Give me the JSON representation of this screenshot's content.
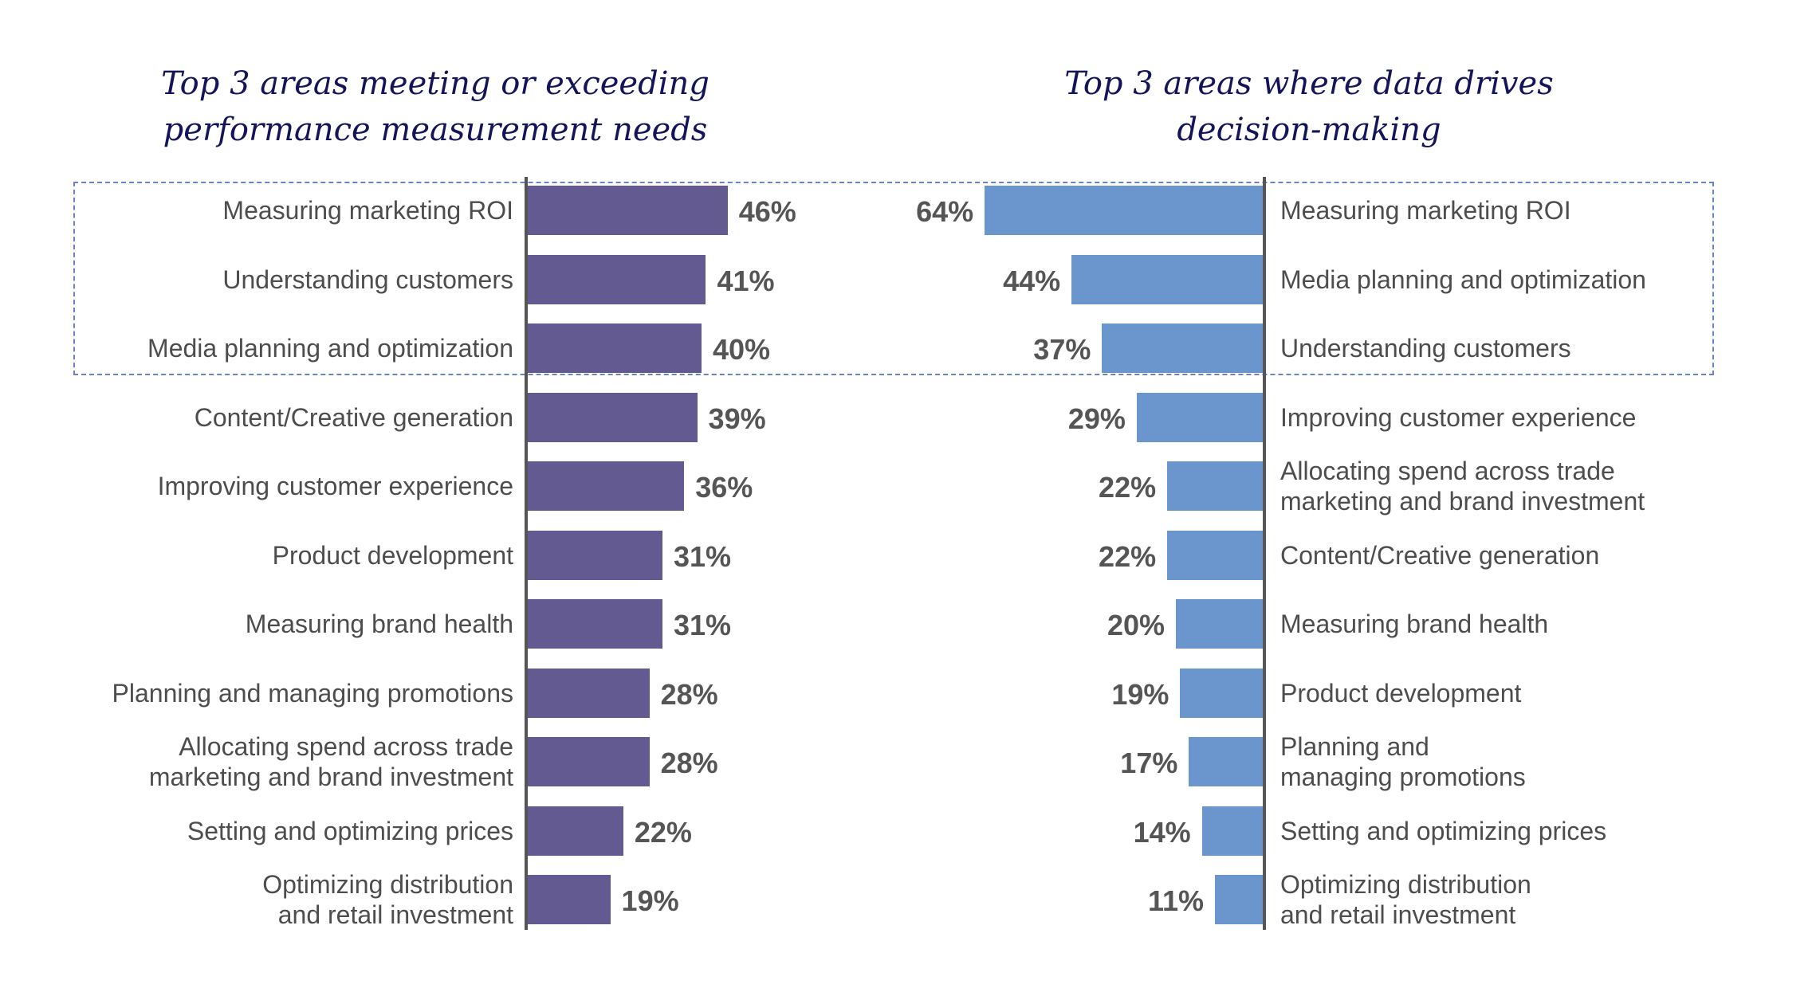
{
  "chart_data": [
    {
      "type": "bar",
      "orientation": "horizontal",
      "title": "Top 3 areas meeting or exceeding\nperformance measurement needs",
      "color": "#635a91",
      "categories": [
        "Measuring marketing ROI",
        "Understanding customers",
        "Media planning and optimization",
        "Content/Creative generation",
        "Improving customer experience",
        "Product development",
        "Measuring brand health",
        "Planning and managing promotions",
        "Allocating spend across trade\nmarketing and brand investment",
        "Setting and optimizing prices",
        "Optimizing distribution\nand retail investment"
      ],
      "values": [
        46,
        41,
        40,
        39,
        36,
        31,
        31,
        28,
        28,
        22,
        19
      ],
      "value_labels": [
        "46%",
        "41%",
        "40%",
        "39%",
        "36%",
        "31%",
        "31%",
        "28%",
        "28%",
        "22%",
        "19%"
      ],
      "highlighted_top": 3
    },
    {
      "type": "bar",
      "orientation": "horizontal",
      "title": "Top 3 areas where data drives\ndecision-making",
      "color": "#6a95cd",
      "categories": [
        "Measuring marketing ROI",
        "Media planning and optimization",
        "Understanding customers",
        "Improving customer experience",
        "Allocating spend across trade\nmarketing and brand investment",
        "Content/Creative generation",
        "Measuring brand health",
        "Product development",
        "Planning and\nmanaging promotions",
        "Setting and optimizing prices",
        "Optimizing distribution\nand retail investment"
      ],
      "values": [
        64,
        44,
        37,
        29,
        22,
        22,
        20,
        19,
        17,
        14,
        11
      ],
      "value_labels": [
        "64%",
        "44%",
        "37%",
        "29%",
        "22%",
        "22%",
        "20%",
        "19%",
        "17%",
        "14%",
        "11%"
      ],
      "highlighted_top": 3
    }
  ]
}
